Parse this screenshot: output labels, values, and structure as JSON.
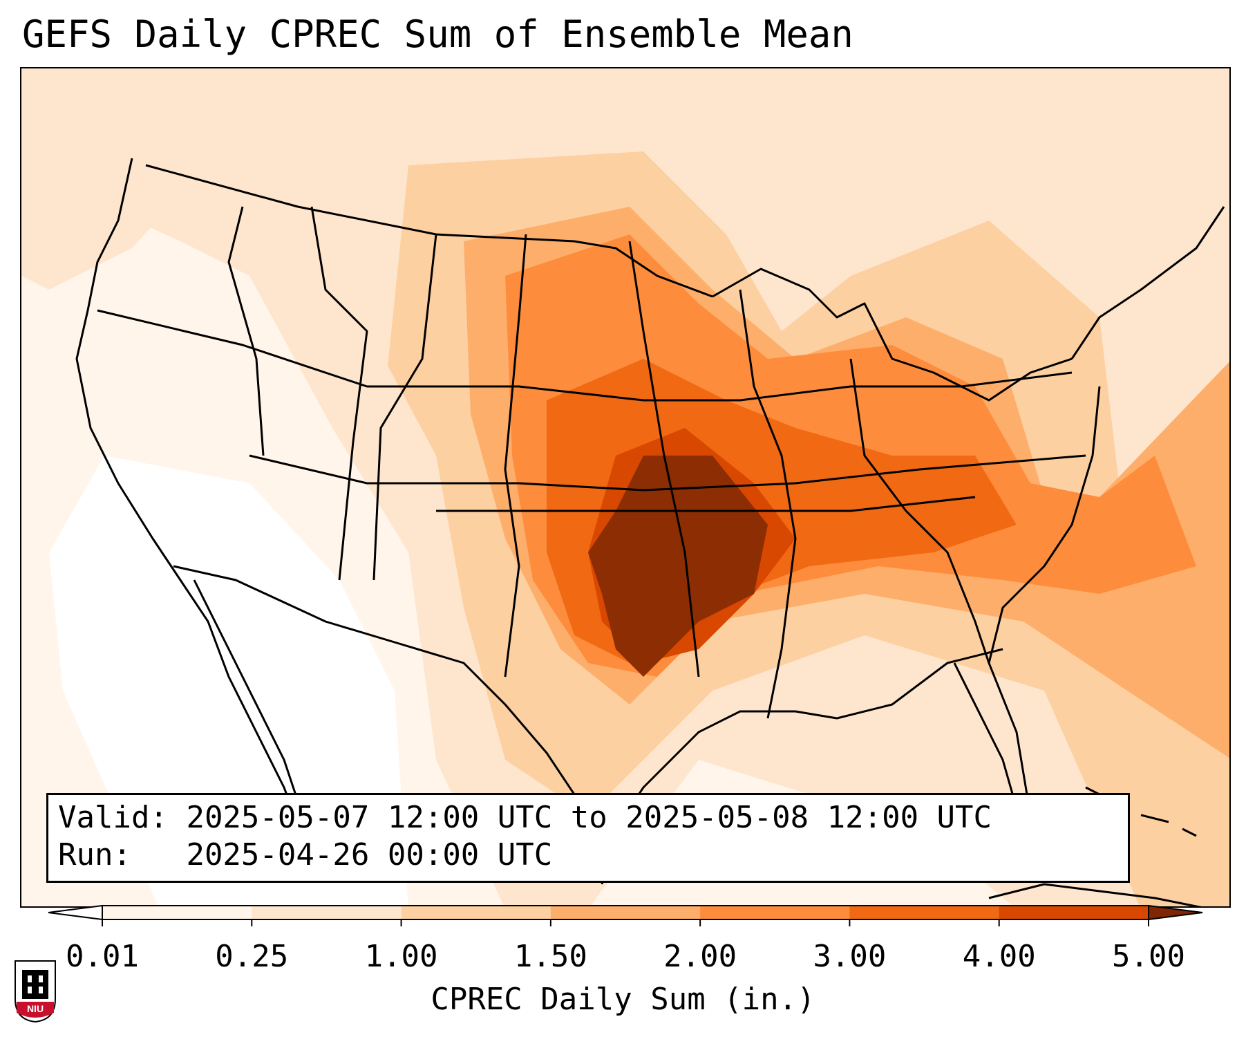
{
  "title": "GEFS Daily CPREC Sum of Ensemble Mean",
  "info": {
    "valid_label": "Valid:",
    "valid_value": "2025-05-07 12:00 UTC to 2025-05-08 12:00 UTC",
    "run_label": "Run:",
    "run_value": "2025-04-26 00:00 UTC"
  },
  "colorbar": {
    "label": "CPREC Daily Sum (in.)",
    "ticks": [
      "0.01",
      "0.25",
      "1.00",
      "1.50",
      "2.00",
      "3.00",
      "4.00",
      "5.00"
    ],
    "colors": [
      "#fff5eb",
      "#fee6ce",
      "#fdd0a2",
      "#fdae6b",
      "#fd8d3c",
      "#f16913",
      "#d94801",
      "#8c2d04"
    ],
    "under_color": "#ffffff",
    "over_color": "#7f2704"
  },
  "logo": {
    "text": "NIU",
    "colors": {
      "red": "#c8102e",
      "black": "#000000"
    }
  }
}
